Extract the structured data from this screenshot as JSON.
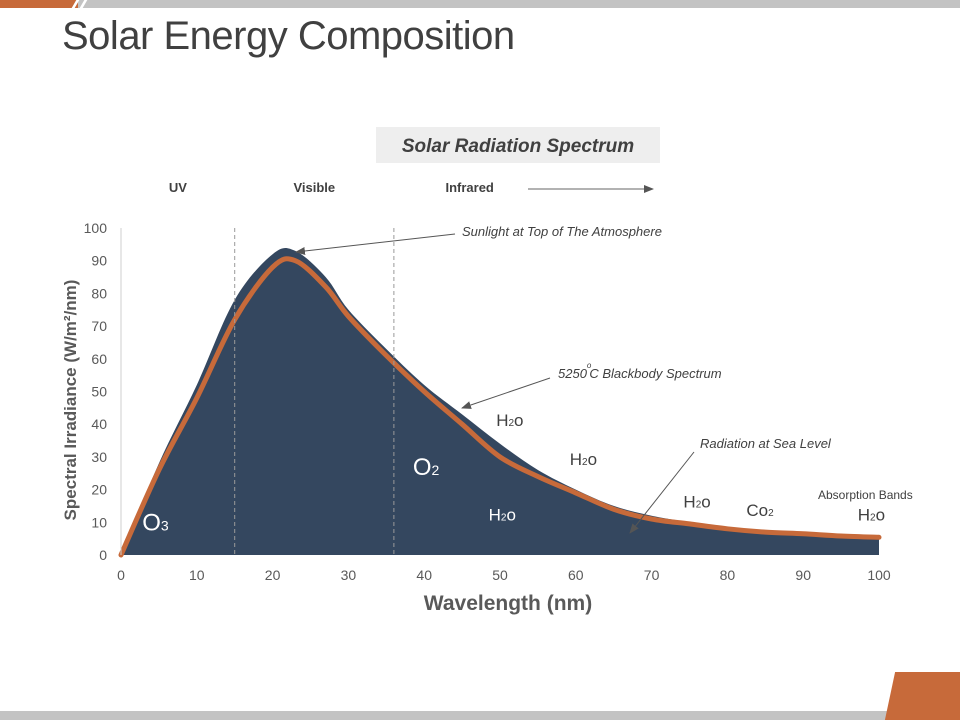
{
  "slide": {
    "title": "Solar Energy Composition"
  },
  "colors": {
    "accent": "#c76a3a",
    "fill": "#34475f",
    "gray": "#c3c3c3"
  },
  "chart_data": {
    "type": "area",
    "title": "Solar Radiation Spectrum",
    "xlabel": "Wavelength (nm)",
    "ylabel": "Spectral Irradiance (W/m²/nm)",
    "xlim": [
      0,
      100
    ],
    "ylim": [
      0,
      100
    ],
    "xticks": [
      0,
      10,
      20,
      30,
      40,
      50,
      60,
      70,
      80,
      90,
      100
    ],
    "yticks": [
      0,
      10,
      20,
      30,
      40,
      50,
      60,
      70,
      80,
      90,
      100
    ],
    "regions": [
      {
        "label": "UV",
        "x": 7.5
      },
      {
        "label": "Visible",
        "x": 25.5
      },
      {
        "label": "Infrared",
        "x": 46
      }
    ],
    "region_dividers": [
      15,
      36
    ],
    "series": [
      {
        "name": "Sunlight at Top of The Atmosphere",
        "x": [
          0,
          5,
          10,
          15,
          20,
          23,
          27,
          30,
          35,
          40,
          45,
          50,
          55,
          60,
          65,
          70,
          75,
          80,
          85,
          90,
          95,
          100
        ],
        "values": [
          0,
          28,
          52,
          78,
          92,
          93,
          85,
          75,
          63,
          52,
          43,
          34,
          26,
          20,
          15,
          12,
          10,
          8.5,
          7.3,
          6.4,
          5.6,
          5
        ]
      },
      {
        "name": "5250°C Blackbody Spectrum",
        "x": [
          0,
          5,
          10,
          15,
          20,
          23,
          27,
          30,
          35,
          40,
          45,
          50,
          55,
          60,
          65,
          70,
          75,
          80,
          85,
          90,
          95,
          100
        ],
        "values": [
          0,
          26,
          48,
          72,
          88,
          90,
          82,
          73,
          61,
          50,
          40,
          30,
          24,
          19,
          14,
          11,
          9.5,
          8,
          7,
          6.5,
          5.8,
          5.4
        ]
      }
    ],
    "annotations": {
      "top_of_atmosphere": "Sunlight at Top of The Atmosphere",
      "blackbody_prefix": "5250",
      "blackbody_degree": "o",
      "blackbody_suffix": "C Blackbody Spectrum",
      "sea_level": "Radiation at Sea Level",
      "absorption_bands": "Absorption Bands"
    },
    "molecules": [
      {
        "base": "O",
        "sub": "3",
        "x": 2.8,
        "y": 7.5,
        "size": "large",
        "color": "#ffffff"
      },
      {
        "base": "O",
        "sub": "2",
        "x": 38.5,
        "y": 24.5,
        "size": "large",
        "color": "#ffffff"
      },
      {
        "base": "H",
        "sub": "2",
        "tail": "o",
        "x": 48.5,
        "y": 10.5,
        "size": "medium",
        "color": "#ffffff"
      },
      {
        "base": "H",
        "sub": "2",
        "tail": "o",
        "x": 49.5,
        "y": 39.5,
        "size": "medium",
        "color": "#404040"
      },
      {
        "base": "H",
        "sub": "2",
        "tail": "o",
        "x": 59.2,
        "y": 27.5,
        "size": "medium",
        "color": "#404040"
      },
      {
        "base": "H",
        "sub": "2",
        "tail": "o",
        "x": 74.2,
        "y": 14.5,
        "size": "medium",
        "color": "#404040"
      },
      {
        "base": "Co",
        "sub": "2",
        "x": 82.5,
        "y": 12,
        "size": "medium",
        "color": "#404040"
      },
      {
        "base": "H",
        "sub": "2",
        "tail": "o",
        "x": 97.2,
        "y": 10.5,
        "size": "medium",
        "color": "#404040"
      }
    ]
  }
}
